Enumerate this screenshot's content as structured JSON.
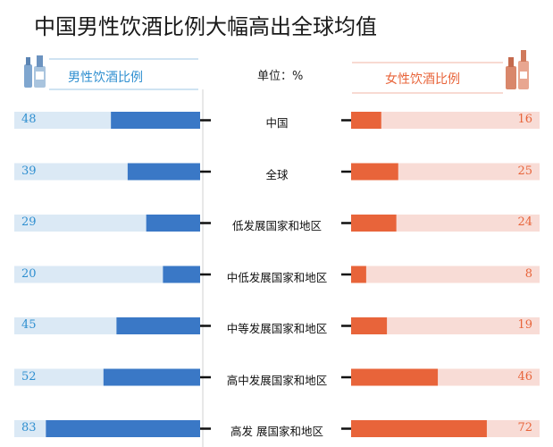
{
  "title": "中国男性饮酒比例大幅高出全球均值",
  "left_header": "男性饮酒比例",
  "right_header": "女性饮酒比例",
  "unit_label": "单位：%",
  "colors": {
    "male_bar": "#3a78c6",
    "male_track": "#dbe9f5",
    "female_bar": "#e8643a",
    "female_track": "#f8dcd6",
    "male_text": "#2f8fd0",
    "female_text": "#e8643a"
  },
  "chart_data": {
    "type": "bar",
    "categories": [
      "中国",
      "全球",
      "低发展国家和地区",
      "中低发展国家和地区",
      "中等发展国家和地区",
      "高中发展国家和地区",
      "高发  展国家和地区"
    ],
    "series": [
      {
        "name": "男性饮酒比例",
        "values": [
          48,
          39,
          29,
          20,
          45,
          52,
          83
        ]
      },
      {
        "name": "女性饮酒比例",
        "values": [
          16,
          25,
          24,
          8,
          19,
          46,
          72
        ]
      }
    ],
    "xlim": [
      0,
      100
    ]
  }
}
